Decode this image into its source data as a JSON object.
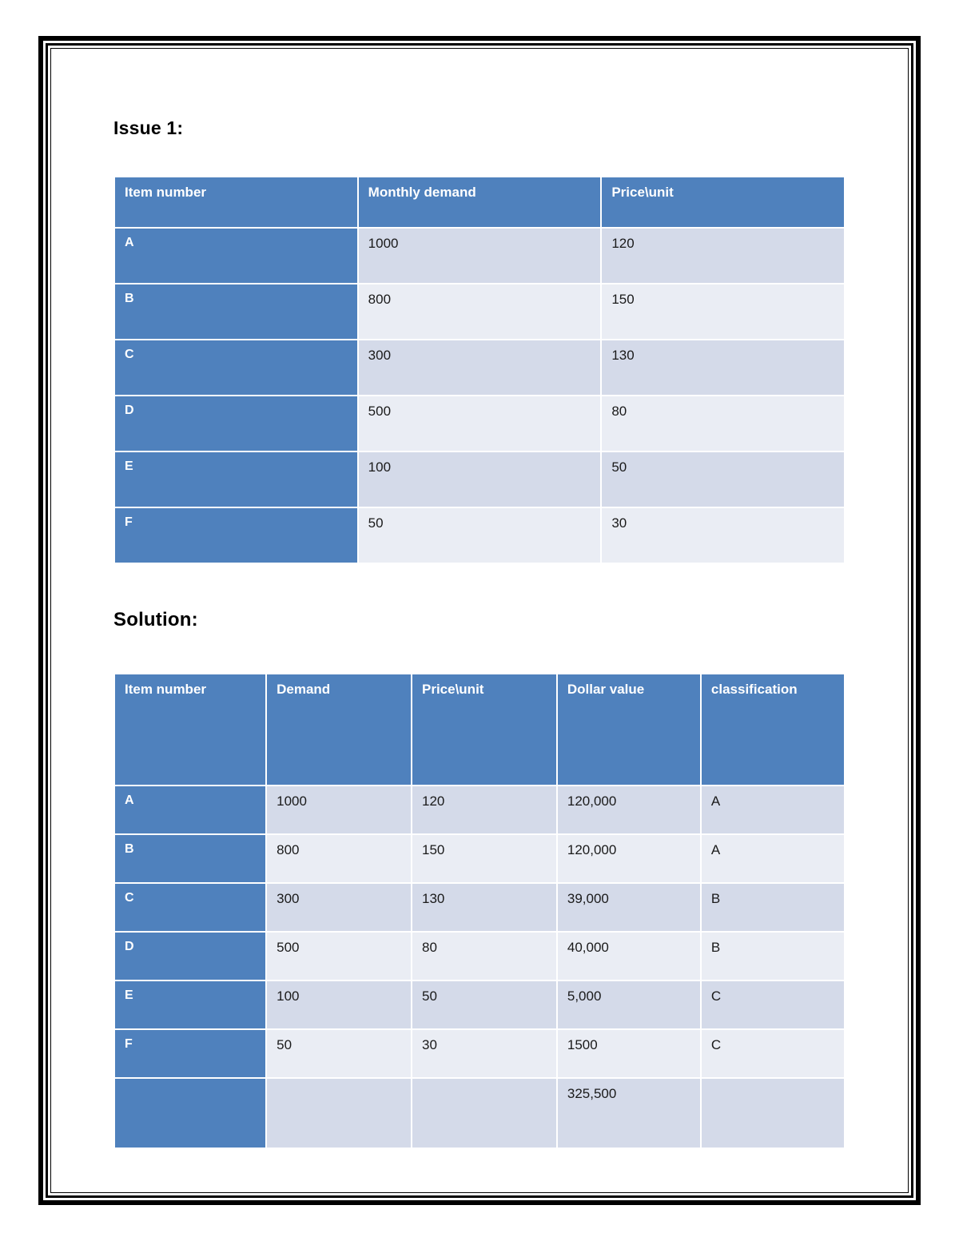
{
  "headings": {
    "issue": "Issue 1:",
    "solution": "Solution:"
  },
  "colors": {
    "table_header_blue": "#4f81bd",
    "row_band_dark": "#d4dae9",
    "row_band_light": "#eaedf4",
    "frame_border": "#000000"
  },
  "issue_table": {
    "headers": [
      "Item number",
      "Monthly demand",
      "Price\\unit"
    ],
    "rows": [
      [
        "A",
        "1000",
        "120"
      ],
      [
        "B",
        "800",
        "150"
      ],
      [
        "C",
        "300",
        "130"
      ],
      [
        "D",
        "500",
        "80"
      ],
      [
        "E",
        "100",
        "50"
      ],
      [
        "F",
        "50",
        "30"
      ]
    ]
  },
  "solution_table": {
    "headers": [
      "Item number",
      "Demand",
      "Price\\unit",
      "Dollar value",
      "classification"
    ],
    "rows": [
      [
        "A",
        "1000",
        "120",
        "120,000",
        "A"
      ],
      [
        "B",
        "800",
        "150",
        "120,000",
        "A"
      ],
      [
        "C",
        "300",
        "130",
        "39,000",
        "B"
      ],
      [
        "D",
        "500",
        "80",
        "40,000",
        "B"
      ],
      [
        "E",
        "100",
        "50",
        "5,000",
        "C"
      ],
      [
        "F",
        "50",
        "30",
        "1500",
        "C"
      ],
      [
        "",
        "",
        "",
        "325,500",
        ""
      ]
    ]
  }
}
